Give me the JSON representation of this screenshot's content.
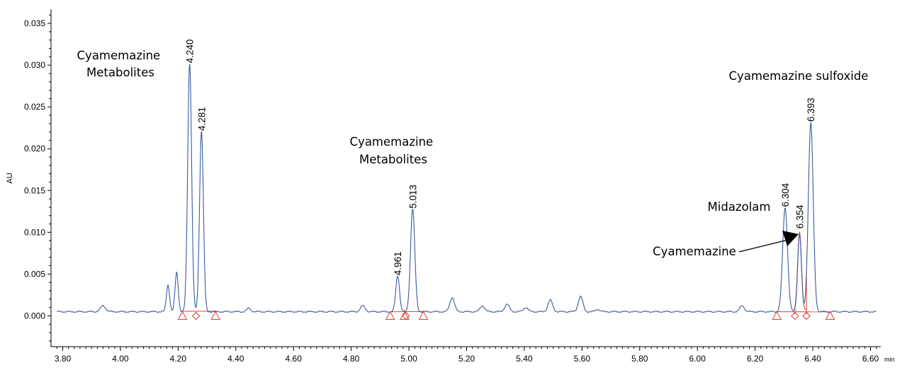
{
  "chart_data": {
    "type": "line",
    "xlabel": "min",
    "ylabel": "AU",
    "xlim": [
      3.78,
      6.62
    ],
    "ylim": [
      -0.0035,
      0.036
    ],
    "x_ticks": [
      3.8,
      4.0,
      4.2,
      4.4,
      4.6,
      4.8,
      5.0,
      5.2,
      5.4,
      5.6,
      5.8,
      6.0,
      6.2,
      6.4,
      6.6
    ],
    "x_tick_labels": [
      "3.80",
      "4.00",
      "4.20",
      "4.40",
      "4.60",
      "4.80",
      "5.00",
      "5.20",
      "5.40",
      "5.60",
      "5.80",
      "6.00",
      "6.20",
      "6.40",
      "6.60"
    ],
    "y_ticks": [
      0.0,
      0.005,
      0.01,
      0.015,
      0.02,
      0.025,
      0.03,
      0.035
    ],
    "y_tick_labels": [
      "0.000",
      "0.005",
      "0.010",
      "0.015",
      "0.020",
      "0.025",
      "0.030",
      "0.035"
    ],
    "grid": false,
    "colors": {
      "trace": "#3a5a9e",
      "integration": "#e03c31",
      "axis": "#000000"
    },
    "series": [
      {
        "baseline": 0.0005,
        "peaks": [
          {
            "rt": 3.94,
            "height": 0.0007,
            "width": 0.009
          },
          {
            "rt": 4.165,
            "height": 0.0032,
            "width": 0.0055
          },
          {
            "rt": 4.195,
            "height": 0.0047,
            "width": 0.0055
          },
          {
            "rt": 4.24,
            "height": 0.0297,
            "width": 0.0068
          },
          {
            "rt": 4.281,
            "height": 0.0216,
            "width": 0.0066
          },
          {
            "rt": 4.445,
            "height": 0.0004,
            "width": 0.007
          },
          {
            "rt": 4.84,
            "height": 0.0007,
            "width": 0.008
          },
          {
            "rt": 4.961,
            "height": 0.0043,
            "width": 0.0065
          },
          {
            "rt": 5.013,
            "height": 0.0123,
            "width": 0.0075
          },
          {
            "rt": 5.15,
            "height": 0.0017,
            "width": 0.008
          },
          {
            "rt": 5.255,
            "height": 0.0007,
            "width": 0.008
          },
          {
            "rt": 5.34,
            "height": 0.0009,
            "width": 0.008
          },
          {
            "rt": 5.405,
            "height": 0.0005,
            "width": 0.008
          },
          {
            "rt": 5.49,
            "height": 0.0014,
            "width": 0.008
          },
          {
            "rt": 5.595,
            "height": 0.0018,
            "width": 0.008
          },
          {
            "rt": 5.655,
            "height": 0.0003,
            "width": 0.007
          },
          {
            "rt": 6.155,
            "height": 0.0007,
            "width": 0.008
          },
          {
            "rt": 6.304,
            "height": 0.0124,
            "width": 0.0085
          },
          {
            "rt": 6.354,
            "height": 0.0093,
            "width": 0.0065
          },
          {
            "rt": 6.393,
            "height": 0.0226,
            "width": 0.0085
          }
        ]
      }
    ],
    "peak_labels": [
      {
        "rt": 4.24,
        "label": "4.240",
        "y": 0.0299
      },
      {
        "rt": 4.281,
        "label": "4.281",
        "y": 0.0218
      },
      {
        "rt": 4.961,
        "label": "4.961",
        "y": 0.0045
      },
      {
        "rt": 5.013,
        "label": "5.013",
        "y": 0.0125
      },
      {
        "rt": 6.304,
        "label": "6.304",
        "y": 0.0127
      },
      {
        "rt": 6.354,
        "label": "6.354",
        "y": 0.0101
      },
      {
        "rt": 6.393,
        "label": "6.393",
        "y": 0.0229
      }
    ],
    "integration": {
      "baselines": [
        {
          "x1": 4.215,
          "x2": 4.33
        },
        {
          "x1": 4.935,
          "x2": 5.05
        },
        {
          "x1": 6.275,
          "x2": 6.46
        }
      ],
      "triangle_markers": [
        4.215,
        4.33,
        4.935,
        4.985,
        5.05,
        6.275,
        6.46
      ],
      "diamond_markers": [
        4.262,
        4.99,
        6.338,
        6.378
      ],
      "drop_lines": [
        6.338,
        6.378
      ],
      "highlighted_peak": {
        "rt": 6.354,
        "height": 0.0093,
        "width": 0.0065,
        "start": 6.338,
        "end": 6.378
      }
    },
    "annotations": [
      {
        "lines": [
          "Cyamemazine",
          "Metabolites"
        ]
      },
      {
        "lines": [
          "Cyamemazine",
          "Metabolites"
        ]
      },
      {
        "lines": [
          "Cyamemazine sulfoxide"
        ]
      },
      {
        "lines": [
          "Midazolam"
        ]
      },
      {
        "lines": [
          "Cyamemazine"
        ]
      }
    ]
  }
}
